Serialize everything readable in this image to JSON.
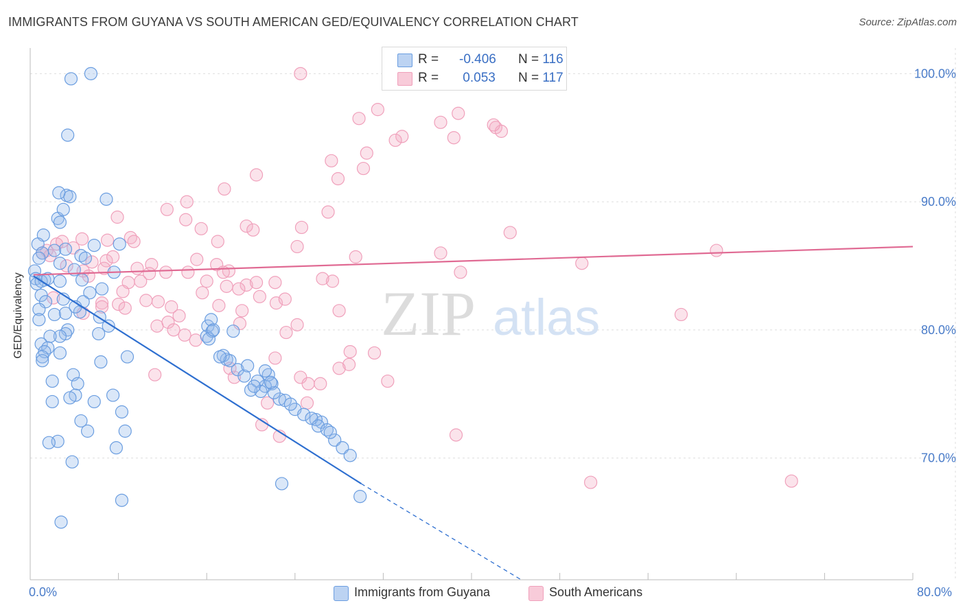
{
  "title": "IMMIGRANTS FROM GUYANA VS SOUTH AMERICAN GED/EQUIVALENCY CORRELATION CHART",
  "source": "Source: ZipAtlas.com",
  "watermark": {
    "zip": "ZIP",
    "atlas": "atlas"
  },
  "legend": {
    "rows": [
      {
        "r_label": "R =",
        "r_value": "-0.406",
        "n_label": "N =",
        "n_value": "116"
      },
      {
        "r_label": "R =",
        "r_value": " 0.053",
        "n_label": "N =",
        "n_value": "117"
      }
    ]
  },
  "chart_data": {
    "type": "scatter",
    "xlabel": "",
    "ylabel": "GED/Equivalency",
    "xlim": [
      0,
      80
    ],
    "ylim": [
      60.5,
      102
    ],
    "x_tick_labels": {
      "left": "0.0%",
      "right": "80.0%"
    },
    "y_ticks": [
      {
        "value": 100,
        "label": "100.0%"
      },
      {
        "value": 90,
        "label": "90.0%"
      },
      {
        "value": 80,
        "label": "80.0%"
      },
      {
        "value": 70,
        "label": "70.0%"
      }
    ],
    "grid": true,
    "legend_position": "top-center",
    "colors": {
      "guyana": "#6a9de0",
      "guyana_line": "#2e6fd0",
      "south": "#f0a0bb",
      "south_line": "#e06a93"
    },
    "series": [
      {
        "name": "Immigrants from Guyana",
        "color": "#6a9de0",
        "r": -0.406,
        "n": 116,
        "trend": {
          "x0": 0.3,
          "y0": 84.2,
          "x1": 30.0,
          "y1": 68.0,
          "dash_x1": 44.5,
          "dash_y1": 60.5
        },
        "points": [
          [
            5.5,
            100
          ],
          [
            3.7,
            99.6
          ],
          [
            3.4,
            95.2
          ],
          [
            3.3,
            90.5
          ],
          [
            3.6,
            90.4
          ],
          [
            2.6,
            90.7
          ],
          [
            6.9,
            90.2
          ],
          [
            2.5,
            88.7
          ],
          [
            3.0,
            89.4
          ],
          [
            2.7,
            88.4
          ],
          [
            1.2,
            87.4
          ],
          [
            3.2,
            86.3
          ],
          [
            0.7,
            86.7
          ],
          [
            2.2,
            86.2
          ],
          [
            1.1,
            86.0
          ],
          [
            0.8,
            85.6
          ],
          [
            2.7,
            85.2
          ],
          [
            0.4,
            84.6
          ],
          [
            0.5,
            84.0
          ],
          [
            1.3,
            83.9
          ],
          [
            0.6,
            83.6
          ],
          [
            1.0,
            83.8
          ],
          [
            1.6,
            84.0
          ],
          [
            2.7,
            83.8
          ],
          [
            4.0,
            84.7
          ],
          [
            4.6,
            85.8
          ],
          [
            5.0,
            85.6
          ],
          [
            5.8,
            86.6
          ],
          [
            8.1,
            86.7
          ],
          [
            7.6,
            84.5
          ],
          [
            4.7,
            83.9
          ],
          [
            6.5,
            83.2
          ],
          [
            5.4,
            82.9
          ],
          [
            1.0,
            82.7
          ],
          [
            1.4,
            82.2
          ],
          [
            3.0,
            82.4
          ],
          [
            4.8,
            82.2
          ],
          [
            4.5,
            81.4
          ],
          [
            0.8,
            81.6
          ],
          [
            0.8,
            80.8
          ],
          [
            2.2,
            81.2
          ],
          [
            3.2,
            81.3
          ],
          [
            4.1,
            81.8
          ],
          [
            6.3,
            81.0
          ],
          [
            7.1,
            80.3
          ],
          [
            3.4,
            80.0
          ],
          [
            3.2,
            79.7
          ],
          [
            2.7,
            79.5
          ],
          [
            1.8,
            79.5
          ],
          [
            1.0,
            78.9
          ],
          [
            6.2,
            79.7
          ],
          [
            1.6,
            78.6
          ],
          [
            1.3,
            78.3
          ],
          [
            1.1,
            77.9
          ],
          [
            1.1,
            77.6
          ],
          [
            2.7,
            78.2
          ],
          [
            8.8,
            77.9
          ],
          [
            6.4,
            77.5
          ],
          [
            3.9,
            76.5
          ],
          [
            4.3,
            75.8
          ],
          [
            2.0,
            76.0
          ],
          [
            7.5,
            74.9
          ],
          [
            4.1,
            74.9
          ],
          [
            3.6,
            74.7
          ],
          [
            2.0,
            74.4
          ],
          [
            5.8,
            74.4
          ],
          [
            8.3,
            73.6
          ],
          [
            4.6,
            72.9
          ],
          [
            5.2,
            72.1
          ],
          [
            8.6,
            72.1
          ],
          [
            2.5,
            71.3
          ],
          [
            1.7,
            71.2
          ],
          [
            7.8,
            70.8
          ],
          [
            3.8,
            69.7
          ],
          [
            8.3,
            66.7
          ],
          [
            2.8,
            65.0
          ],
          [
            16.1,
            80.3
          ],
          [
            16.4,
            80.8
          ],
          [
            16.0,
            79.5
          ],
          [
            16.5,
            79.9
          ],
          [
            16.2,
            79.3
          ],
          [
            16.6,
            80.0
          ],
          [
            21.9,
            75.8
          ],
          [
            26.4,
            72.8
          ],
          [
            17.8,
            77.7
          ],
          [
            21.3,
            75.6
          ],
          [
            20.6,
            76.0
          ],
          [
            20.9,
            75.2
          ],
          [
            21.6,
            76.5
          ],
          [
            25.9,
            73.0
          ],
          [
            22.6,
            74.6
          ],
          [
            24.0,
            73.8
          ],
          [
            18.8,
            76.9
          ],
          [
            19.4,
            76.4
          ],
          [
            20.0,
            75.3
          ],
          [
            21.3,
            76.8
          ],
          [
            22.1,
            75.1
          ],
          [
            23.1,
            74.5
          ],
          [
            17.5,
            78.0
          ],
          [
            18.1,
            77.6
          ],
          [
            21.8,
            75.9
          ],
          [
            24.8,
            73.4
          ],
          [
            25.5,
            73.1
          ],
          [
            26.1,
            72.5
          ],
          [
            26.9,
            72.2
          ],
          [
            27.6,
            71.4
          ],
          [
            28.3,
            70.8
          ],
          [
            29.0,
            70.2
          ],
          [
            22.8,
            68.0
          ],
          [
            29.9,
            67.0
          ],
          [
            18.4,
            79.9
          ],
          [
            17.2,
            77.9
          ],
          [
            19.7,
            77.2
          ],
          [
            20.3,
            75.6
          ],
          [
            23.6,
            74.2
          ],
          [
            27.2,
            72.0
          ]
        ]
      },
      {
        "name": "South Americans",
        "color": "#f0a0bb",
        "r": 0.053,
        "n": 117,
        "trend": {
          "x0": 0.3,
          "y0": 84.3,
          "x1": 80.0,
          "y1": 86.5
        },
        "points": [
          [
            24.5,
            100
          ],
          [
            32.5,
            100
          ],
          [
            31.5,
            97.2
          ],
          [
            29.8,
            96.5
          ],
          [
            37.2,
            96.2
          ],
          [
            38.8,
            96.9
          ],
          [
            42.2,
            95.8
          ],
          [
            42.7,
            95.5
          ],
          [
            42.0,
            96.0
          ],
          [
            38.4,
            95.0
          ],
          [
            33.7,
            95.1
          ],
          [
            33.1,
            94.8
          ],
          [
            30.5,
            93.8
          ],
          [
            27.3,
            93.2
          ],
          [
            30.2,
            92.6
          ],
          [
            27.9,
            91.8
          ],
          [
            20.5,
            92.1
          ],
          [
            17.6,
            91.0
          ],
          [
            14.2,
            90.0
          ],
          [
            12.4,
            89.4
          ],
          [
            27.0,
            89.2
          ],
          [
            7.9,
            88.8
          ],
          [
            14.1,
            88.6
          ],
          [
            19.6,
            88.1
          ],
          [
            24.6,
            88.0
          ],
          [
            20.2,
            87.8
          ],
          [
            15.5,
            87.9
          ],
          [
            43.5,
            87.6
          ],
          [
            7.0,
            87.0
          ],
          [
            9.1,
            87.2
          ],
          [
            9.4,
            86.9
          ],
          [
            4.7,
            87.1
          ],
          [
            2.4,
            86.7
          ],
          [
            3.9,
            86.4
          ],
          [
            17.0,
            86.9
          ],
          [
            1.5,
            86.2
          ],
          [
            1.1,
            86.0
          ],
          [
            1.8,
            85.8
          ],
          [
            5.6,
            85.3
          ],
          [
            6.9,
            85.4
          ],
          [
            11.0,
            85.1
          ],
          [
            12.3,
            84.5
          ],
          [
            15.1,
            85.5
          ],
          [
            16.9,
            85.1
          ],
          [
            18.0,
            84.6
          ],
          [
            29.5,
            85.7
          ],
          [
            24.2,
            86.5
          ],
          [
            37.2,
            86.0
          ],
          [
            62.2,
            86.2
          ],
          [
            50.0,
            85.2
          ],
          [
            4.8,
            84.6
          ],
          [
            6.7,
            84.8
          ],
          [
            9.7,
            84.8
          ],
          [
            14.3,
            84.5
          ],
          [
            17.5,
            84.5
          ],
          [
            16.0,
            83.8
          ],
          [
            17.8,
            83.4
          ],
          [
            19.6,
            83.5
          ],
          [
            20.5,
            83.7
          ],
          [
            22.2,
            83.7
          ],
          [
            8.9,
            83.7
          ],
          [
            10.0,
            83.8
          ],
          [
            27.4,
            83.8
          ],
          [
            39.0,
            84.5
          ],
          [
            10.5,
            82.3
          ],
          [
            11.6,
            82.2
          ],
          [
            6.5,
            82.1
          ],
          [
            8.0,
            82.0
          ],
          [
            8.6,
            81.7
          ],
          [
            17.1,
            81.9
          ],
          [
            19.2,
            81.5
          ],
          [
            20.8,
            82.6
          ],
          [
            22.3,
            82.1
          ],
          [
            28.0,
            81.5
          ],
          [
            2.1,
            82.5
          ],
          [
            4.8,
            81.3
          ],
          [
            6.5,
            81.8
          ],
          [
            13.5,
            81.1
          ],
          [
            11.5,
            80.3
          ],
          [
            12.5,
            80.6
          ],
          [
            14.0,
            79.6
          ],
          [
            15.0,
            79.2
          ],
          [
            19.0,
            80.5
          ],
          [
            23.2,
            79.8
          ],
          [
            24.2,
            80.4
          ],
          [
            13.0,
            80.0
          ],
          [
            29.0,
            78.3
          ],
          [
            31.2,
            78.2
          ],
          [
            22.2,
            77.8
          ],
          [
            28.9,
            77.3
          ],
          [
            28.0,
            77.0
          ],
          [
            18.1,
            77.0
          ],
          [
            18.5,
            76.3
          ],
          [
            11.3,
            76.5
          ],
          [
            24.5,
            76.3
          ],
          [
            25.2,
            75.8
          ],
          [
            26.3,
            75.8
          ],
          [
            32.4,
            76.0
          ],
          [
            21.5,
            74.3
          ],
          [
            25.1,
            74.3
          ],
          [
            21.0,
            72.6
          ],
          [
            22.6,
            71.7
          ],
          [
            38.6,
            71.8
          ],
          [
            59.0,
            81.2
          ],
          [
            50.8,
            68.1
          ],
          [
            69.0,
            68.2
          ],
          [
            3.3,
            85.0
          ],
          [
            5.3,
            84.2
          ],
          [
            7.5,
            85.7
          ],
          [
            2.9,
            86.9
          ],
          [
            8.4,
            83.0
          ],
          [
            10.8,
            84.4
          ],
          [
            12.8,
            81.8
          ],
          [
            15.6,
            82.9
          ],
          [
            18.9,
            83.2
          ],
          [
            23.1,
            82.4
          ],
          [
            26.5,
            84.0
          ]
        ]
      }
    ]
  },
  "bottom_legend": [
    {
      "label": "Immigrants from Guyana",
      "color": "#6a9de0"
    },
    {
      "label": "South Americans",
      "color": "#f0a0bb"
    }
  ]
}
